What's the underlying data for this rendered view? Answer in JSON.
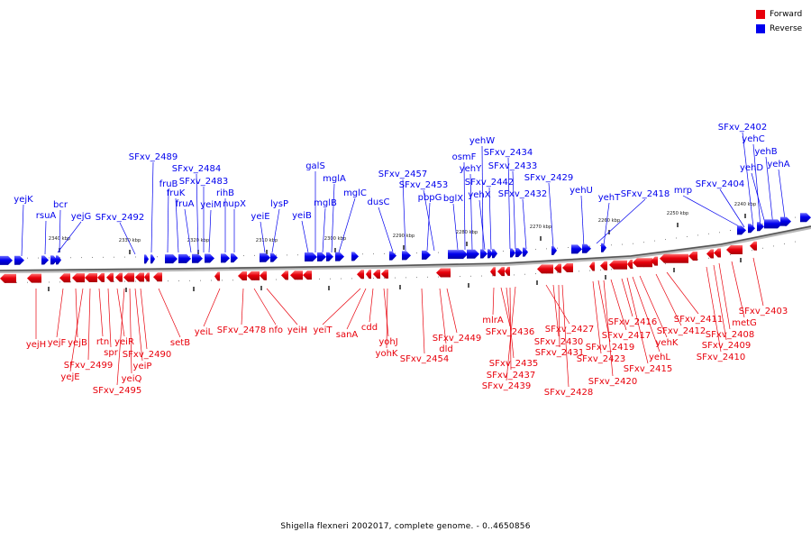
{
  "legend": {
    "forward_label": "Forward",
    "reverse_label": "Reverse",
    "forward_color": "#e8000b",
    "reverse_color": "#0000ee"
  },
  "caption": "Shigella flexneri 2002017, complete genome. - 0..4650856",
  "scale_labels": [
    "2240 kbp",
    "2250 kbp",
    "2260 kbp",
    "2270 kbp",
    "2280 kbp",
    "2290 kbp",
    "2300 kbp",
    "2310 kbp",
    "2320 kbp",
    "2330 kbp",
    "2340 kbp"
  ],
  "reverse_genes": [
    "yejK",
    "rsuA",
    "bcr",
    "yejG",
    "SFxv_2492",
    "SFxv_2489",
    "fruB",
    "fruK",
    "fruA",
    "SFxv_2484",
    "SFxv_2483",
    "yeiM",
    "rihB",
    "nupX",
    "yeiE",
    "lysP",
    "yeiB",
    "galS",
    "mglB",
    "mglA",
    "mglC",
    "dusC",
    "SFxv_2457",
    "pbpG",
    "SFxv_2453",
    "bglX",
    "osmF",
    "yehY",
    "yehW",
    "yehX",
    "SFxv_2442",
    "SFxv_2434",
    "SFxv_2433",
    "SFxv_2432",
    "SFxv_2429",
    "yehU",
    "yehT",
    "SFxv_2418",
    "mrp",
    "SFxv_2404",
    "SFxv_2402",
    "yehC",
    "yehD",
    "yehB",
    "yehA"
  ],
  "forward_genes": [
    "yejH",
    "yejF",
    "yejB",
    "yejE",
    "SFxv_2499",
    "rtn",
    "spr",
    "yeiR",
    "SFxv_2495",
    "yeiQ",
    "yeiP",
    "SFxv_2490",
    "setB",
    "yeiL",
    "SFxv_2478",
    "nfo",
    "yeiH",
    "yeiT",
    "sanA",
    "cdd",
    "yohJ",
    "yohK",
    "SFxv_2454",
    "dld",
    "SFxv_2449",
    "mlrA",
    "SFxv_2436",
    "SFxv_2435",
    "SFxv_2437",
    "SFxv_2439",
    "SFxv_2427",
    "SFxv_2430",
    "SFxv_2431",
    "SFxv_2428",
    "SFxv_2423",
    "SFxv_2419",
    "SFxv_2420",
    "SFxv_2417",
    "SFxv_2416",
    "SFxv_2415",
    "yehL",
    "yehK",
    "SFxv_2412",
    "SFxv_2411",
    "SFxv_2410",
    "SFxv_2409",
    "SFxv_2408",
    "metG",
    "SFxv_2403"
  ]
}
